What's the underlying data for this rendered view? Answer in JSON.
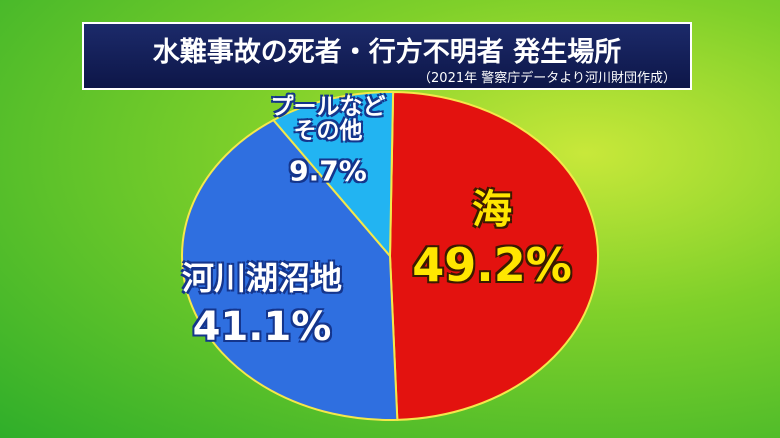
{
  "chart_data": {
    "type": "pie",
    "title": "水難事故の死者・行方不明者 発生場所",
    "subtitle": "（2021年 警察庁データより河川財団作成）",
    "categories": [
      "海",
      "河川湖沼地",
      "プールなど\nその他"
    ],
    "values": [
      49.2,
      41.1,
      9.7
    ],
    "value_labels": [
      "49.2%",
      "41.1%",
      "9.7%"
    ],
    "colors": [
      "#e3120f",
      "#2f6fe0",
      "#22b4f2"
    ]
  }
}
